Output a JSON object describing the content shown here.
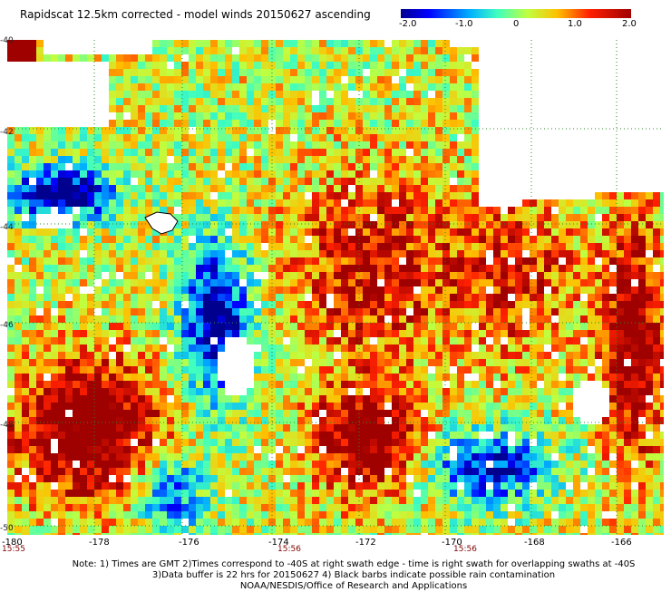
{
  "title": "Rapidscat 12.5km corrected - model winds 20150627 ascending",
  "colorbar": {
    "ticks": [
      "-2.0",
      "-1.0",
      "0",
      "1.0",
      "2.0"
    ],
    "range": [
      -2.0,
      2.0
    ],
    "colors": [
      "#00008f",
      "#0000ff",
      "#00b0ff",
      "#40ffbf",
      "#bfff40",
      "#ffc000",
      "#ff2000",
      "#9f0000"
    ]
  },
  "axes": {
    "lat_labels": [
      "-40",
      "-42",
      "-44",
      "-46",
      "-48",
      "-50"
    ],
    "lon_labels": [
      "-180",
      "-178",
      "-176",
      "-174",
      "-172",
      "-170",
      "-168",
      "-166"
    ],
    "time_labels": [
      "15:55",
      "15:56",
      "15:56"
    ]
  },
  "notes": [
    "Note: 1) Times are GMT 2)Times correspond to -40S at right swath edge - time is right swath for overlapping swaths at -40S",
    "3)Data buffer is 22 hrs for 20150627 4) Black barbs indicate possible rain contamination",
    "NOAA/NESDIS/Office of Research and Applications"
  ]
}
